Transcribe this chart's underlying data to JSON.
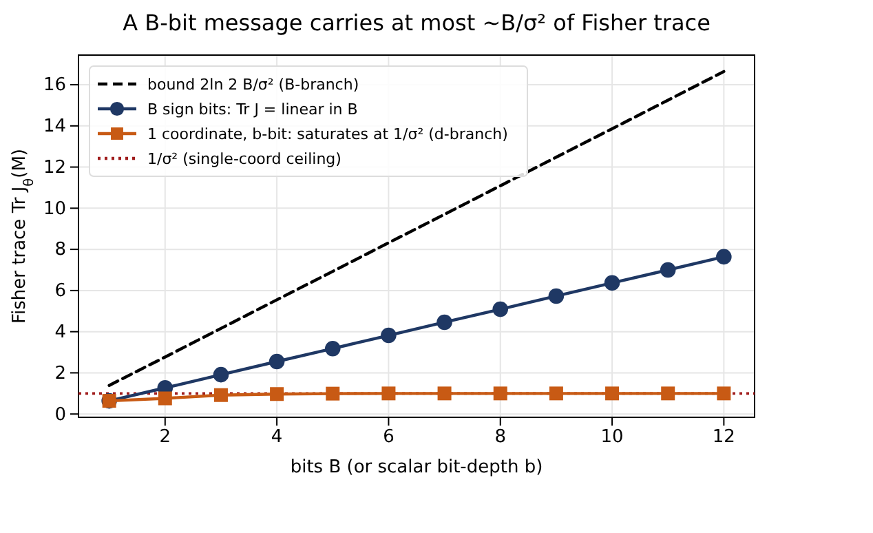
{
  "chart_data": {
    "type": "line",
    "title": "A B-bit message carries at most  ~B/σ² of Fisher trace",
    "xlabel": "bits B (or scalar bit-depth b)",
    "ylabel": "Fisher trace Tr J$_{θ}$(M)",
    "x": [
      1,
      2,
      3,
      4,
      5,
      6,
      7,
      8,
      9,
      10,
      11,
      12
    ],
    "series": [
      {
        "name": "bound 2ln 2 B/σ² (B-branch)",
        "color": "#000000",
        "line_style": "dashed",
        "marker": "none",
        "values": [
          1.39,
          2.77,
          4.16,
          5.55,
          6.93,
          8.32,
          9.7,
          11.09,
          12.48,
          13.86,
          15.25,
          16.64
        ]
      },
      {
        "name": "B sign bits: Tr J = linear in B",
        "color": "#1f3864",
        "marker": "circle",
        "line_style": "solid",
        "values": [
          0.64,
          1.27,
          1.91,
          2.55,
          3.18,
          3.82,
          4.46,
          5.09,
          5.73,
          6.37,
          7.0,
          7.64
        ]
      },
      {
        "name": "1 coordinate, b-bit: saturates at 1/σ² (d-branch)",
        "color": "#c85a14",
        "marker": "square",
        "line_style": "solid",
        "values": [
          0.64,
          0.76,
          0.92,
          0.97,
          0.99,
          1.0,
          1.0,
          1.0,
          1.0,
          1.0,
          1.0,
          1.0
        ]
      }
    ],
    "ref_lines": [
      {
        "axis": "y",
        "value": 1,
        "label": "1/σ² (single-coord ceiling)",
        "color": "#a01c1c",
        "line_style": "dotted"
      }
    ],
    "xlim": [
      0.45,
      12.55
    ],
    "xticks": [
      2,
      4,
      6,
      8,
      10,
      12
    ],
    "ylim": [
      -0.16,
      17.44
    ],
    "yticks": [
      0,
      2,
      4,
      6,
      8,
      10,
      12,
      14,
      16
    ],
    "grid": true,
    "legend": "top left"
  }
}
